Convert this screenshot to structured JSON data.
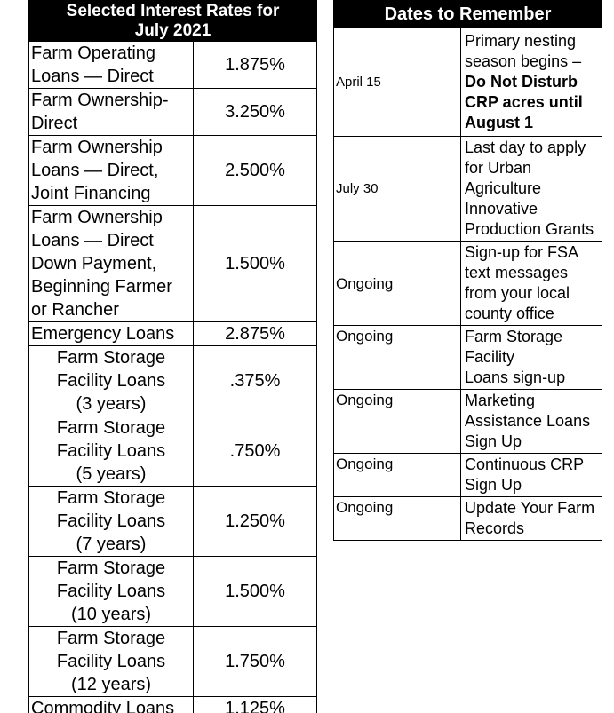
{
  "colors": {
    "header_bg": "#000000",
    "header_text": "#ffffff",
    "border": "#000000",
    "body_text": "#000000",
    "page_bg": "#ffffff"
  },
  "rates_table": {
    "title_line1": "Selected Interest Rates for",
    "title_line2": "July 2021",
    "rows": [
      {
        "label": "Farm Operating\nLoans — Direct",
        "value": "1.875%"
      },
      {
        "label": "Farm Ownership-\nDirect",
        "value": "3.250%"
      },
      {
        "label": "Farm Ownership\nLoans — Direct,\nJoint Financing",
        "value": "2.500%"
      },
      {
        "label": "Farm Ownership\nLoans — Direct\nDown Payment,\nBeginning Farmer\nor Rancher",
        "value": "1.500%"
      },
      {
        "label": "Emergency Loans",
        "value": "2.875%"
      },
      {
        "label": "Farm Storage\nFacility Loans\n(3 years)",
        "value": ".375%"
      },
      {
        "label": "Farm Storage\nFacility Loans\n(5 years)",
        "value": ".750%"
      },
      {
        "label": "Farm Storage\nFacility Loans\n(7 years)",
        "value": "1.250%"
      },
      {
        "label": "Farm Storage\nFacility Loans\n(10 years)",
        "value": "1.500%"
      },
      {
        "label": "Farm Storage\nFacility Loans\n(12 years)",
        "value": "1.750%"
      },
      {
        "label": "Commodity Loans",
        "value": "1.125%"
      }
    ]
  },
  "dates_table": {
    "title": "Dates to Remember",
    "rows": [
      {
        "date": "April 15",
        "parts": [
          {
            "text": "Primary nesting\nseason begins –",
            "bold": false
          },
          {
            "text": "\nDo Not Disturb\nCRP acres until\nAugust 1",
            "bold": true
          }
        ]
      },
      {
        "date": "July 30",
        "parts": [
          {
            "text": "Last day to apply\nfor Urban\nAgriculture\nInnovative\nProduction Grants",
            "bold": false
          }
        ]
      },
      {
        "date": "Ongoing",
        "parts": [
          {
            "text": "Sign-up for FSA\ntext messages\nfrom your local\ncounty office",
            "bold": false
          }
        ]
      },
      {
        "date": "Ongoing",
        "parts": [
          {
            "text": "Farm Storage\nFacility\nLoans sign-up",
            "bold": false
          }
        ]
      },
      {
        "date": "Ongoing",
        "parts": [
          {
            "text": "Marketing\nAssistance Loans\nSign Up",
            "bold": false
          }
        ]
      },
      {
        "date": "Ongoing",
        "parts": [
          {
            "text": "Continuous CRP\nSign Up",
            "bold": false
          }
        ]
      },
      {
        "date": "Ongoing",
        "parts": [
          {
            "text": "Update Your Farm\nRecords",
            "bold": false
          }
        ]
      }
    ]
  }
}
